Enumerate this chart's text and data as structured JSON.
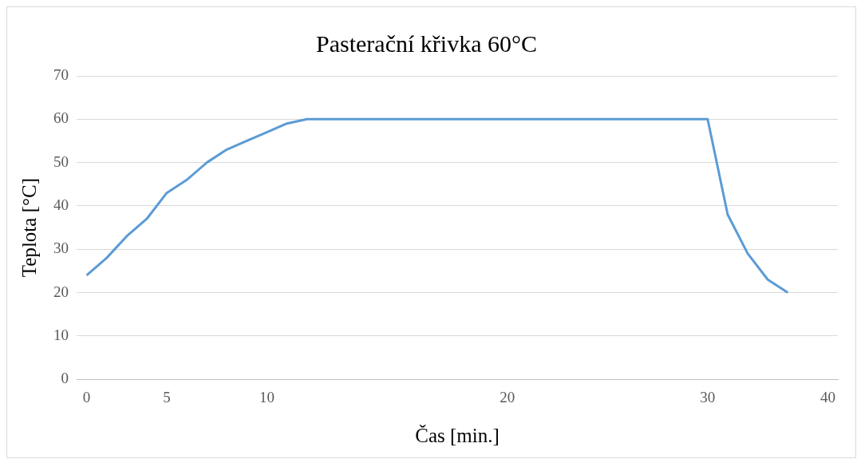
{
  "chart_data": {
    "type": "line",
    "title": "Pasterační křivka 60°C",
    "xlabel": "Čas [min.]",
    "ylabel": "Teplota [°C]",
    "categories": [
      "0",
      null,
      null,
      null,
      "5",
      null,
      null,
      null,
      null,
      "10",
      null,
      null,
      null,
      null,
      null,
      null,
      null,
      null,
      null,
      null,
      null,
      "20",
      null,
      null,
      null,
      null,
      null,
      null,
      null,
      null,
      null,
      "30",
      null,
      null,
      null,
      null,
      null,
      "40"
    ],
    "series": [
      {
        "color": "#5b9bd5",
        "values": [
          24,
          28,
          33,
          37,
          43,
          46,
          50,
          53,
          55,
          57,
          59,
          60,
          60,
          60,
          60,
          60,
          60,
          60,
          60,
          60,
          60,
          60,
          60,
          60,
          60,
          60,
          60,
          60,
          60,
          60,
          60,
          60,
          38,
          29,
          23,
          20,
          null,
          null
        ]
      }
    ],
    "ylim": [
      0,
      70
    ],
    "yticks": [
      0,
      10,
      20,
      30,
      40,
      50,
      60,
      70
    ],
    "grid": "y",
    "legend": false,
    "marker": "none",
    "line_style": "solid"
  }
}
